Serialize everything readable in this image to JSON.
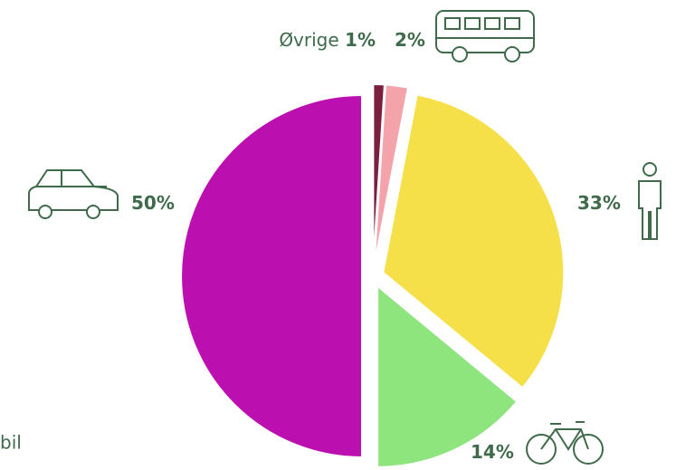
{
  "chart_data": {
    "type": "pie",
    "categories": [
      "Øvrige",
      null,
      null,
      null,
      null
    ],
    "values": [
      1,
      2,
      33,
      14,
      50
    ],
    "value_labels": [
      "1%",
      "2%",
      "33%",
      "14%",
      "50%"
    ],
    "colors": [
      "#7a1f3d",
      "#f4a3ab",
      "#f5e04a",
      "#8ee57e",
      "#bc0fb0"
    ],
    "annotations": [
      "bil"
    ]
  }
}
